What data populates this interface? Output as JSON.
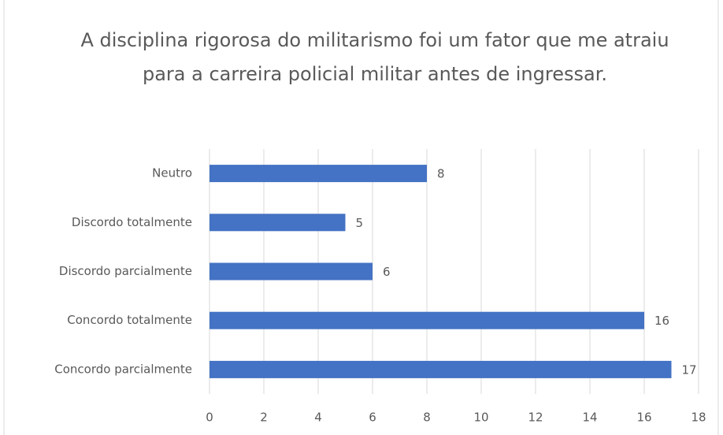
{
  "chart_data": {
    "type": "barh",
    "title": "A disciplina rigorosa do militarismo foi um fator que me atraiu para a carreira policial militar antes de ingressar.",
    "categories": [
      "Neutro",
      "Discordo totalmente",
      "Discordo parcialmente",
      "Concordo totalmente",
      "Concordo parcialmente"
    ],
    "values": [
      8,
      5,
      6,
      16,
      17
    ],
    "color": "#4472c4",
    "xlim": [
      0,
      18
    ],
    "xticks": [
      0,
      2,
      4,
      6,
      8,
      10,
      12,
      14,
      16,
      18
    ],
    "grid": true,
    "data_labels": true
  }
}
